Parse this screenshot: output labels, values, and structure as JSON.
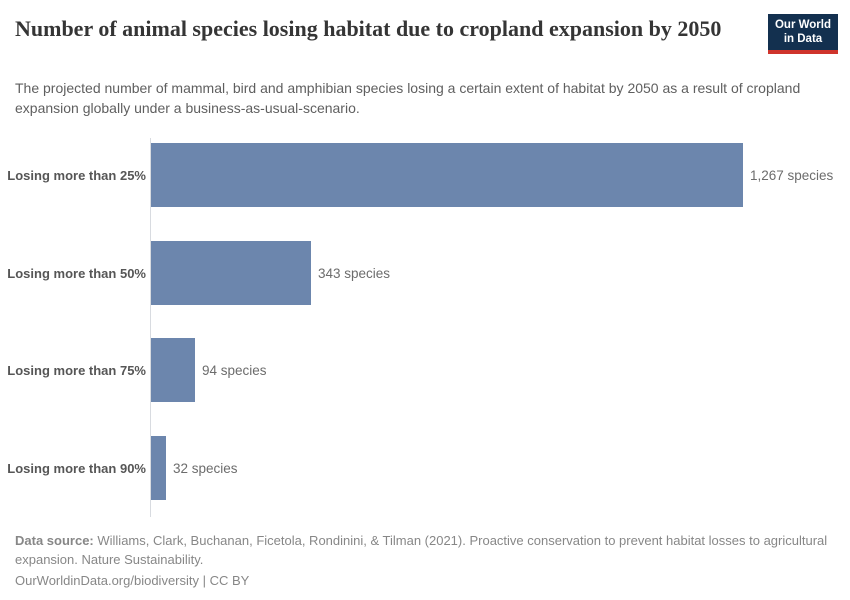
{
  "header": {
    "title": "Number of animal species losing habitat due to cropland expansion by 2050",
    "subtitle": "The projected number of mammal, bird and amphibian species losing a certain extent of habitat by 2050 as a result of cropland expansion globally under a business-as-usual-scenario.",
    "logo": {
      "line1": "Our World",
      "line2": "in Data"
    }
  },
  "chart_data": {
    "type": "bar",
    "orientation": "horizontal",
    "title": "Number of animal species losing habitat due to cropland expansion by 2050",
    "categories": [
      "Losing more than 25%",
      "Losing more than 50%",
      "Losing more than 75%",
      "Losing more than 90%"
    ],
    "values": [
      1267,
      343,
      94,
      32
    ],
    "value_labels": [
      "1,267 species",
      "343 species",
      "94 species",
      "32 species"
    ],
    "unit": "species",
    "xlim": [
      0,
      1267
    ],
    "grid": false,
    "legend": "none",
    "bar_color": "#6c86ad"
  },
  "footer": {
    "data_source_label": "Data source:",
    "data_source_text": "Williams, Clark, Buchanan, Ficetola, Rondinini, & Tilman (2021). Proactive conservation to prevent habitat losses to agricultural expansion. Nature Sustainability.",
    "link_line": "OurWorldinData.org/biodiversity | CC BY"
  },
  "colors": {
    "bar": "#6c86ad",
    "axis_line": "#d8dbe0",
    "title_text": "#353535",
    "subtitle_text": "#5f5f5f",
    "category_label": "#565656",
    "value_label": "#6c6c6c",
    "footer_text": "#878787",
    "logo_background": "#13304f",
    "logo_accent": "#cf342c"
  }
}
